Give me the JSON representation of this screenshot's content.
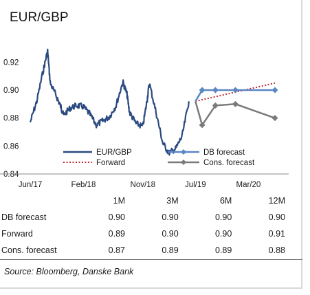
{
  "title": "EUR/GBP",
  "colors": {
    "eurgbp": "#2b4a80",
    "db_forecast": "#5b86c4",
    "forward": "#c0282d",
    "cons_forecast": "#7a7a7a"
  },
  "chart_data": {
    "type": "line",
    "title": "EUR/GBP",
    "xlabel": "",
    "ylabel": "",
    "ylim": [
      0.84,
      0.93
    ],
    "y_ticks": [
      "0.84",
      "0.86",
      "0.88",
      "0.90",
      "0.92"
    ],
    "x_ticks": [
      "Jun/17",
      "Feb/18",
      "Nov/18",
      "Jul/19",
      "Mar/20"
    ],
    "grid": false,
    "legend_placement": "bottom-right",
    "series": [
      {
        "name": "EUR/GBP",
        "x": [
          "2017-06",
          "2017-07",
          "2017-08",
          "2017-08",
          "2017-09",
          "2017-10",
          "2017-10",
          "2017-11",
          "2017-12",
          "2018-01",
          "2018-02",
          "2018-03",
          "2018-04",
          "2018-05",
          "2018-06",
          "2018-07",
          "2018-08",
          "2018-08",
          "2018-09",
          "2018-10",
          "2018-11",
          "2018-11",
          "2018-12",
          "2019-01",
          "2019-02",
          "2019-03",
          "2019-04",
          "2019-05",
          "2019-06"
        ],
        "values": [
          0.877,
          0.892,
          0.915,
          0.928,
          0.905,
          0.895,
          0.888,
          0.882,
          0.887,
          0.889,
          0.888,
          0.883,
          0.875,
          0.878,
          0.881,
          0.889,
          0.906,
          0.897,
          0.884,
          0.876,
          0.874,
          0.892,
          0.905,
          0.884,
          0.862,
          0.855,
          0.858,
          0.867,
          0.892
        ]
      },
      {
        "name": "DB forecast",
        "x": [
          "2019-07",
          "2019-08",
          "2019-10",
          "2020-01",
          "2020-07"
        ],
        "values": [
          0.892,
          0.9,
          0.9,
          0.9,
          0.9
        ]
      },
      {
        "name": "Forward",
        "x": [
          "2019-07",
          "2020-07"
        ],
        "values": [
          0.892,
          0.905
        ]
      },
      {
        "name": "Cons. forecast",
        "x": [
          "2019-07",
          "2019-08",
          "2019-10",
          "2020-01",
          "2020-07"
        ],
        "values": [
          0.892,
          0.875,
          0.889,
          0.89,
          0.88
        ]
      }
    ]
  },
  "table": {
    "headers": [
      "",
      "1M",
      "3M",
      "6M",
      "12M"
    ],
    "rows": [
      {
        "label": "DB forecast",
        "values": [
          "0.90",
          "0.90",
          "0.90",
          "0.90"
        ]
      },
      {
        "label": "Forward",
        "values": [
          "0.89",
          "0.90",
          "0.90",
          "0.91"
        ]
      },
      {
        "label": "Cons. forecast",
        "values": [
          "0.87",
          "0.89",
          "0.89",
          "0.88"
        ]
      }
    ]
  },
  "source": "Source: Bloomberg, Danske Bank"
}
